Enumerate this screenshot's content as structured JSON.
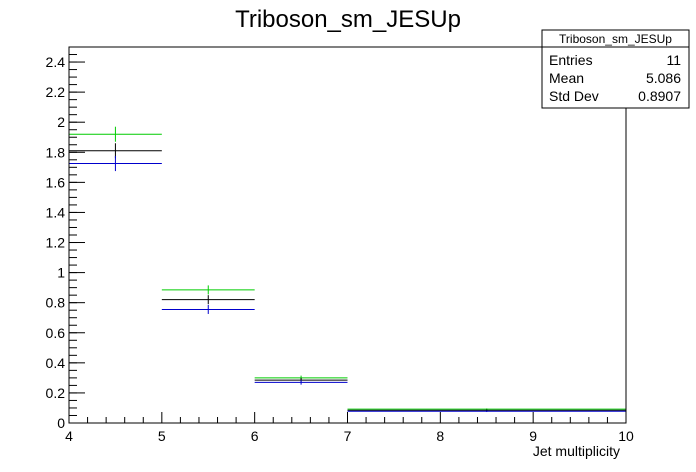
{
  "chart_data": {
    "type": "histogram",
    "title": "Triboson_sm_JESUp",
    "xlabel": "Jet multiplicity",
    "ylabel": "",
    "xlim": [
      4,
      10
    ],
    "ylim": [
      0,
      2.5
    ],
    "x_major_ticks": [
      4,
      5,
      6,
      7,
      8,
      9,
      10
    ],
    "y_major_ticks": [
      0,
      0.2,
      0.4,
      0.6,
      0.8,
      1,
      1.2,
      1.4,
      1.6,
      1.8,
      2,
      2.2,
      2.4
    ],
    "grid": false,
    "stats_box": {
      "title": "Triboson_sm_JESUp",
      "rows": [
        {
          "label": "Entries",
          "value": "11"
        },
        {
          "label": "Mean",
          "value": "5.086"
        },
        {
          "label": "Std Dev",
          "value": "0.8907"
        }
      ],
      "placement": "top-right"
    },
    "series": [
      {
        "color": "#00cc00",
        "bins": [
          {
            "lo": 4,
            "hi": 5,
            "value": 1.92,
            "err": 0.05
          },
          {
            "lo": 5,
            "hi": 6,
            "value": 0.885,
            "err": 0.03
          },
          {
            "lo": 6,
            "hi": 7,
            "value": 0.3,
            "err": 0.015
          },
          {
            "lo": 7,
            "hi": 10,
            "value": 0.092,
            "err": 0.005
          }
        ]
      },
      {
        "color": "#000000",
        "bins": [
          {
            "lo": 4,
            "hi": 5,
            "value": 1.81,
            "err": 0.05
          },
          {
            "lo": 5,
            "hi": 6,
            "value": 0.82,
            "err": 0.03
          },
          {
            "lo": 6,
            "hi": 7,
            "value": 0.285,
            "err": 0.015
          },
          {
            "lo": 7,
            "hi": 10,
            "value": 0.085,
            "err": 0.005
          }
        ]
      },
      {
        "color": "#0000cc",
        "bins": [
          {
            "lo": 4,
            "hi": 5,
            "value": 1.725,
            "err": 0.05
          },
          {
            "lo": 5,
            "hi": 6,
            "value": 0.755,
            "err": 0.03
          },
          {
            "lo": 6,
            "hi": 7,
            "value": 0.27,
            "err": 0.015
          },
          {
            "lo": 7,
            "hi": 10,
            "value": 0.078,
            "err": 0.005
          }
        ]
      }
    ]
  }
}
